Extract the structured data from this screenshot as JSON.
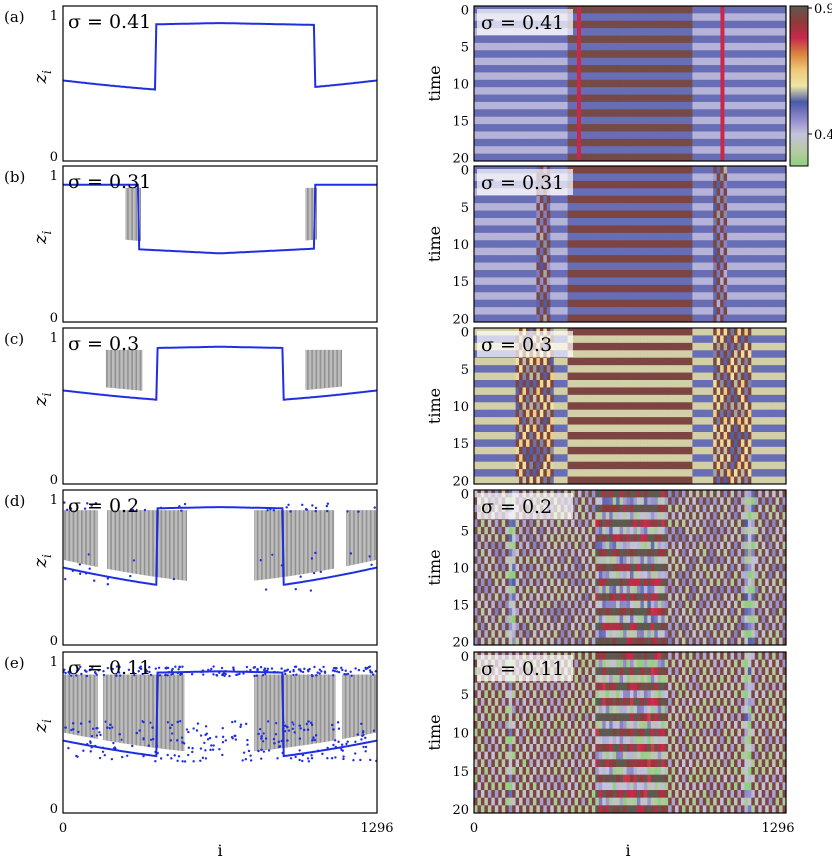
{
  "chart_data": [
    {
      "panel": "(a)",
      "type": "scatter",
      "sigma_label": "σ = 0.41",
      "n_nodes": 1296,
      "xlim": [
        0,
        1296
      ],
      "ylim": [
        0,
        1
      ],
      "ylabel": "z_i",
      "y_ticks": [
        "0",
        "1"
      ],
      "profile": {
        "low": 0.44,
        "edge": 0.52,
        "high": 0.89,
        "coherent_regions": [
          [
            0,
            380
          ],
          [
            1040,
            1296
          ]
        ],
        "incoherent_regions": [],
        "domes": [
          [
            380,
            1040
          ]
        ]
      },
      "spacetime": {
        "ylabel": "time",
        "y_ticks": [
          "0",
          "5",
          "10",
          "15",
          "20"
        ],
        "phase_slips": [
          436,
          1032
        ]
      }
    },
    {
      "panel": "(b)",
      "type": "scatter",
      "sigma_label": "σ = 0.31",
      "n_nodes": 1296,
      "xlim": [
        0,
        1296
      ],
      "ylim": [
        0,
        1
      ],
      "ylabel": "z_i",
      "y_ticks": [
        "0",
        "1"
      ],
      "profile": {
        "low": 0.44,
        "edge": 0.52,
        "high": 0.88,
        "incoherent_regions": [
          [
            260,
            320
          ],
          [
            1000,
            1050
          ]
        ]
      },
      "spacetime": {
        "ylabel": "time",
        "y_ticks": [
          "0",
          "5",
          "10",
          "15",
          "20"
        ]
      }
    },
    {
      "panel": "(c)",
      "type": "scatter",
      "sigma_label": "σ = 0.3",
      "n_nodes": 1296,
      "xlim": [
        0,
        1296
      ],
      "ylim": [
        0,
        1
      ],
      "ylabel": "z_i",
      "y_ticks": [
        "0",
        "1"
      ],
      "profile": {
        "low": 0.52,
        "edge": 0.6,
        "high": 0.88,
        "incoherent_regions": [
          [
            175,
            330
          ],
          [
            1000,
            1150
          ]
        ]
      },
      "spacetime": {
        "ylabel": "time",
        "y_ticks": [
          "0",
          "5",
          "10",
          "15",
          "20"
        ]
      }
    },
    {
      "panel": "(d)",
      "type": "scatter",
      "sigma_label": "σ = 0.2",
      "n_nodes": 1296,
      "xlim": [
        0,
        1296
      ],
      "ylim": [
        0,
        1
      ],
      "ylabel": "z_i",
      "y_ticks": [
        "0",
        "1"
      ],
      "profile": {
        "low": 0.35,
        "edge": 0.5,
        "high": 0.89,
        "top": 0.92,
        "incoherent_regions": [
          [
            0,
            145
          ],
          [
            180,
            510
          ],
          [
            790,
            1120
          ],
          [
            1170,
            1296
          ]
        ]
      },
      "spacetime": {
        "ylabel": "time",
        "y_ticks": [
          "0",
          "5",
          "10",
          "15",
          "20"
        ]
      }
    },
    {
      "panel": "(e)",
      "type": "scatter",
      "sigma_label": "σ = 0.11",
      "n_nodes": 1296,
      "xlim": [
        0,
        1296
      ],
      "ylim": [
        0,
        1
      ],
      "ylabel": "z_i",
      "y_ticks": [
        "0",
        "1"
      ],
      "profile": {
        "low": 0.32,
        "edge": 0.45,
        "high": 0.88,
        "top": 0.91,
        "incoherent_regions": [
          [
            0,
            145
          ],
          [
            165,
            500
          ],
          [
            790,
            1125
          ],
          [
            1155,
            1296
          ]
        ]
      },
      "spacetime": {
        "ylabel": "time",
        "y_ticks": [
          "0",
          "5",
          "10",
          "15",
          "20"
        ]
      }
    }
  ],
  "xaxis": {
    "xlabel": "i",
    "x_ticks": [
      "0",
      "1296"
    ]
  },
  "colorbar": {
    "tick_high": "0.9",
    "tick_low": "0.4",
    "range": [
      0.3,
      0.92
    ],
    "colors": [
      "#8fcf7f",
      "#b9c9a6",
      "#c4c2dd",
      "#8c86c8",
      "#4a5aa8",
      "#ede6a6",
      "#f0c878",
      "#d8843e",
      "#c8284c",
      "#8e3a3a",
      "#5d5a50"
    ]
  }
}
